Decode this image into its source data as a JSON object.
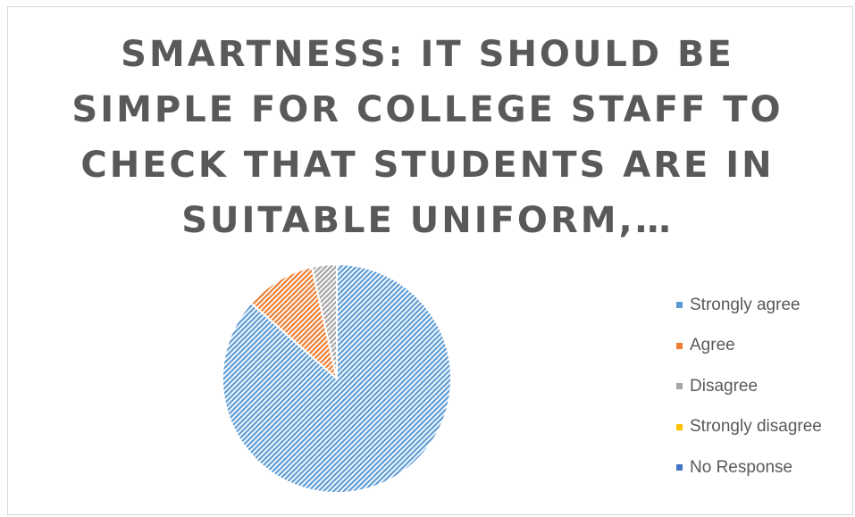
{
  "chart_data": {
    "type": "pie",
    "title_lines": [
      "SMARTNESS: IT SHOULD BE",
      "SIMPLE FOR COLLEGE STAFF TO",
      "CHECK THAT STUDENTS ARE IN",
      "SUITABLE UNIFORM,…"
    ],
    "categories": [
      "Strongly agree",
      "Agree",
      "Disagree",
      "Strongly disagree",
      "No Response"
    ],
    "values": [
      86.5,
      10,
      3.5,
      0,
      0
    ],
    "colors": [
      "#5b9bd5",
      "#ed7d31",
      "#a5a5a5",
      "#ffc000",
      "#4472c4"
    ],
    "fill_pattern": "diagonal-hatch",
    "legend_position": "right"
  }
}
